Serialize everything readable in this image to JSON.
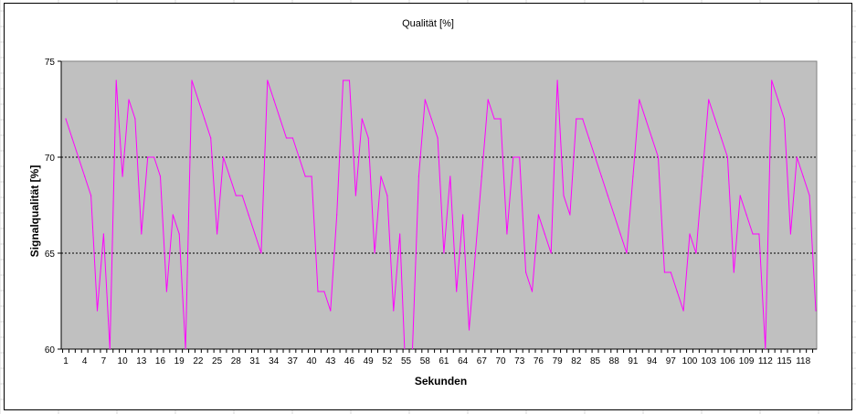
{
  "chart_data": {
    "type": "line",
    "title": "Qualität [%]",
    "xlabel": "Sekunden",
    "ylabel": "Signalqualität [%]",
    "ylim": [
      60,
      75
    ],
    "yticks": [
      "60",
      "65",
      "70",
      "75"
    ],
    "grid": "dashed horizontal at 65 and 70",
    "plot_background": "#c0c0c0",
    "colors": {
      "series": "#ff00ff",
      "grid": "#000000"
    },
    "x_tick_labels": [
      "1",
      "4",
      "7",
      "10",
      "13",
      "16",
      "19",
      "22",
      "25",
      "28",
      "31",
      "34",
      "37",
      "40",
      "43",
      "46",
      "49",
      "52",
      "55",
      "58",
      "61",
      "64",
      "67",
      "70",
      "73",
      "76",
      "79",
      "82",
      "85",
      "88",
      "91",
      "94",
      "97",
      "100",
      "103",
      "106",
      "109",
      "112",
      "115",
      "118"
    ],
    "x": [
      1,
      2,
      3,
      4,
      5,
      6,
      7,
      8,
      9,
      10,
      11,
      12,
      13,
      14,
      15,
      16,
      17,
      18,
      19,
      20,
      21,
      22,
      23,
      24,
      25,
      26,
      27,
      28,
      29,
      30,
      31,
      32,
      33,
      34,
      35,
      36,
      37,
      38,
      39,
      40,
      41,
      42,
      43,
      44,
      45,
      46,
      47,
      48,
      49,
      50,
      51,
      52,
      53,
      54,
      55,
      56,
      57,
      58,
      59,
      60,
      61,
      62,
      63,
      64,
      65,
      66,
      67,
      68,
      69,
      70,
      71,
      72,
      73,
      74,
      75,
      76,
      77,
      78,
      79,
      80,
      81,
      82,
      83,
      84,
      85,
      86,
      87,
      88,
      89,
      90,
      91,
      92,
      93,
      94,
      95,
      96,
      97,
      98,
      99,
      100,
      101,
      102,
      103,
      104,
      105,
      106,
      107,
      108,
      109,
      110,
      111,
      112,
      113,
      114,
      115,
      116,
      117,
      118,
      119,
      120
    ],
    "series": [
      {
        "values": [
          72,
          71,
          70,
          69,
          68,
          62,
          66,
          60,
          74,
          69,
          73,
          72,
          66,
          70,
          70,
          69,
          63,
          67,
          66,
          60,
          74,
          73,
          72,
          71,
          66,
          70,
          69,
          68,
          68,
          67,
          66,
          65,
          74,
          73,
          72,
          71,
          71,
          70,
          69,
          69,
          63,
          63,
          62,
          67,
          74,
          74,
          68,
          72,
          71,
          65,
          69,
          68,
          62,
          66,
          58,
          60,
          69,
          73,
          72,
          71,
          65,
          69,
          63,
          67,
          61,
          65,
          69,
          73,
          72,
          72,
          66,
          70,
          70,
          64,
          63,
          67,
          66,
          65,
          74,
          68,
          67,
          72,
          72,
          71,
          70,
          69,
          68,
          67,
          66,
          65,
          69,
          73,
          72,
          71,
          70,
          64,
          64,
          63,
          62,
          66,
          65,
          69,
          73,
          72,
          71,
          70,
          64,
          68,
          67,
          66,
          66,
          60,
          74,
          73,
          72,
          66,
          70,
          69,
          68,
          62
        ]
      }
    ]
  }
}
